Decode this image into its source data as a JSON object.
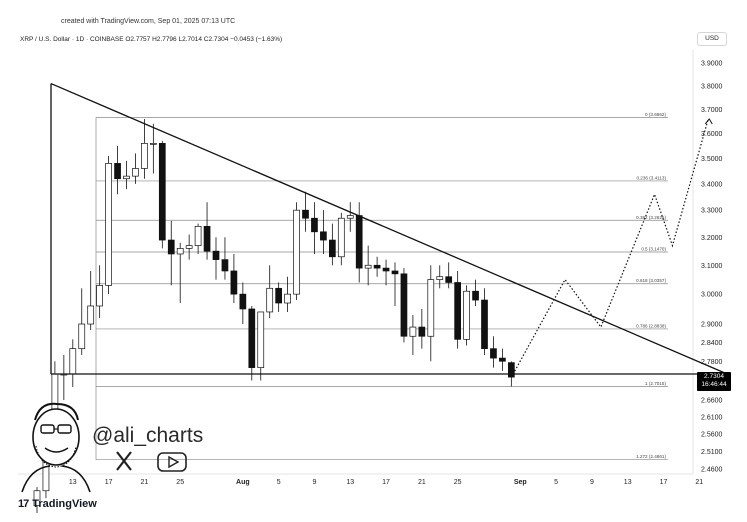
{
  "header": {
    "created_text": "created with TradingView.com, Sep 01, 2025 07:13 UTC",
    "symbol_line": "XRP / U.S. Dollar · 1D · COINBASE  O2.7757  H2.7796  L2.7014  C2.7304  −0.0453 (−1.63%)",
    "currency": "USD"
  },
  "price_tag": {
    "price": "2.7304",
    "countdown": "16:46:44"
  },
  "watermark": {
    "handle": "@ali_charts",
    "icons": [
      "x-icon",
      "youtube-icon"
    ]
  },
  "footer": {
    "logo_mark": "17",
    "logo_text": "TradingView"
  },
  "chart_data": {
    "type": "candlestick",
    "y_axis": {
      "scale": "log",
      "ticks": [
        "3.9000",
        "3.8000",
        "3.7000",
        "3.6000",
        "3.5000",
        "3.4000",
        "3.3000",
        "3.2000",
        "3.1000",
        "3.0000",
        "2.9000",
        "2.8400",
        "2.7800",
        "2.6600",
        "2.6100",
        "2.5600",
        "2.5100",
        "2.4600"
      ]
    },
    "x_axis": {
      "ticks": [
        "13",
        "17",
        "21",
        "25",
        "Aug",
        "5",
        "9",
        "13",
        "17",
        "21",
        "25",
        "Sep",
        "5",
        "9",
        "13",
        "17",
        "21"
      ]
    },
    "fibonacci": [
      {
        "label": "0 (3.6662)",
        "value": 3.6662
      },
      {
        "label": "0.236 (3.4113)",
        "value": 3.4113
      },
      {
        "label": "0.382 (3.2625)",
        "value": 3.2625
      },
      {
        "label": "0.5 (3.1470)",
        "value": 3.147
      },
      {
        "label": "0.618 (3.0357)",
        "value": 3.0357
      },
      {
        "label": "0.786 (2.8838)",
        "value": 2.8838
      },
      {
        "label": "1 (2.7015)",
        "value": 2.7015
      },
      {
        "label": "1.272 (2.4861)",
        "value": 2.4861
      }
    ],
    "candles": [
      {
        "date": "Jul 09",
        "open": 2.36,
        "high": 2.41,
        "low": 2.34,
        "close": 2.4
      },
      {
        "date": "Jul 10",
        "open": 2.4,
        "high": 2.55,
        "low": 2.38,
        "close": 2.53
      },
      {
        "date": "Jul 11",
        "open": 2.53,
        "high": 2.78,
        "low": 2.5,
        "close": 2.74
      },
      {
        "date": "Jul 12",
        "open": 2.74,
        "high": 2.8,
        "low": 2.66,
        "close": 2.74
      },
      {
        "date": "Jul 13",
        "open": 2.74,
        "high": 2.85,
        "low": 2.7,
        "close": 2.82
      },
      {
        "date": "Jul 14",
        "open": 2.82,
        "high": 3.02,
        "low": 2.8,
        "close": 2.9
      },
      {
        "date": "Jul 15",
        "open": 2.9,
        "high": 3.08,
        "low": 2.88,
        "close": 2.96
      },
      {
        "date": "Jul 16",
        "open": 2.96,
        "high": 3.1,
        "low": 2.92,
        "close": 3.03
      },
      {
        "date": "Jul 17",
        "open": 3.03,
        "high": 3.51,
        "low": 3.0,
        "close": 3.48
      },
      {
        "date": "Jul 18",
        "open": 3.48,
        "high": 3.55,
        "low": 3.36,
        "close": 3.42
      },
      {
        "date": "Jul 19",
        "open": 3.42,
        "high": 3.49,
        "low": 3.38,
        "close": 3.43
      },
      {
        "date": "Jul 20",
        "open": 3.43,
        "high": 3.52,
        "low": 3.4,
        "close": 3.46
      },
      {
        "date": "Jul 21",
        "open": 3.46,
        "high": 3.66,
        "low": 3.42,
        "close": 3.56
      },
      {
        "date": "Jul 22",
        "open": 3.56,
        "high": 3.64,
        "low": 3.44,
        "close": 3.56
      },
      {
        "date": "Jul 23",
        "open": 3.56,
        "high": 3.57,
        "low": 3.16,
        "close": 3.19
      },
      {
        "date": "Jul 24",
        "open": 3.19,
        "high": 3.26,
        "low": 3.03,
        "close": 3.14
      },
      {
        "date": "Jul 25",
        "open": 3.14,
        "high": 3.18,
        "low": 2.97,
        "close": 3.16
      },
      {
        "date": "Jul 26",
        "open": 3.16,
        "high": 3.21,
        "low": 3.12,
        "close": 3.17
      },
      {
        "date": "Jul 27",
        "open": 3.17,
        "high": 3.25,
        "low": 3.14,
        "close": 3.24
      },
      {
        "date": "Jul 28",
        "open": 3.24,
        "high": 3.33,
        "low": 3.12,
        "close": 3.15
      },
      {
        "date": "Jul 29",
        "open": 3.15,
        "high": 3.2,
        "low": 3.05,
        "close": 3.12
      },
      {
        "date": "Jul 30",
        "open": 3.12,
        "high": 3.2,
        "low": 3.05,
        "close": 3.08
      },
      {
        "date": "Jul 31",
        "open": 3.08,
        "high": 3.14,
        "low": 2.97,
        "close": 3.0
      },
      {
        "date": "Aug 01",
        "open": 3.0,
        "high": 3.04,
        "low": 2.9,
        "close": 2.95
      },
      {
        "date": "Aug 02",
        "open": 2.95,
        "high": 2.96,
        "low": 2.72,
        "close": 2.76
      },
      {
        "date": "Aug 03",
        "open": 2.76,
        "high": 2.94,
        "low": 2.72,
        "close": 2.94
      },
      {
        "date": "Aug 04",
        "open": 2.94,
        "high": 3.1,
        "low": 2.92,
        "close": 3.02
      },
      {
        "date": "Aug 05",
        "open": 3.02,
        "high": 3.04,
        "low": 2.94,
        "close": 2.97
      },
      {
        "date": "Aug 06",
        "open": 2.97,
        "high": 3.06,
        "low": 2.94,
        "close": 3.0
      },
      {
        "date": "Aug 07",
        "open": 3.0,
        "high": 3.33,
        "low": 2.98,
        "close": 3.3
      },
      {
        "date": "Aug 08",
        "open": 3.3,
        "high": 3.37,
        "low": 3.22,
        "close": 3.27
      },
      {
        "date": "Aug 09",
        "open": 3.27,
        "high": 3.33,
        "low": 3.14,
        "close": 3.22
      },
      {
        "date": "Aug 10",
        "open": 3.22,
        "high": 3.3,
        "low": 3.14,
        "close": 3.19
      },
      {
        "date": "Aug 11",
        "open": 3.19,
        "high": 3.25,
        "low": 3.1,
        "close": 3.13
      },
      {
        "date": "Aug 12",
        "open": 3.13,
        "high": 3.29,
        "low": 3.1,
        "close": 3.27
      },
      {
        "date": "Aug 13",
        "open": 3.27,
        "high": 3.33,
        "low": 3.22,
        "close": 3.28
      },
      {
        "date": "Aug 14",
        "open": 3.28,
        "high": 3.33,
        "low": 3.04,
        "close": 3.09
      },
      {
        "date": "Aug 15",
        "open": 3.09,
        "high": 3.17,
        "low": 3.03,
        "close": 3.1
      },
      {
        "date": "Aug 16",
        "open": 3.1,
        "high": 3.13,
        "low": 3.06,
        "close": 3.09
      },
      {
        "date": "Aug 17",
        "open": 3.09,
        "high": 3.12,
        "low": 3.03,
        "close": 3.08
      },
      {
        "date": "Aug 18",
        "open": 3.08,
        "high": 3.11,
        "low": 2.96,
        "close": 3.07
      },
      {
        "date": "Aug 19",
        "open": 3.07,
        "high": 3.09,
        "low": 2.84,
        "close": 2.86
      },
      {
        "date": "Aug 20",
        "open": 2.86,
        "high": 2.93,
        "low": 2.8,
        "close": 2.89
      },
      {
        "date": "Aug 21",
        "open": 2.89,
        "high": 2.95,
        "low": 2.82,
        "close": 2.86
      },
      {
        "date": "Aug 22",
        "open": 2.86,
        "high": 3.1,
        "low": 2.78,
        "close": 3.05
      },
      {
        "date": "Aug 23",
        "open": 3.05,
        "high": 3.1,
        "low": 3.02,
        "close": 3.06
      },
      {
        "date": "Aug 24",
        "open": 3.06,
        "high": 3.11,
        "low": 3.02,
        "close": 3.04
      },
      {
        "date": "Aug 25",
        "open": 3.04,
        "high": 3.08,
        "low": 2.82,
        "close": 2.85
      },
      {
        "date": "Aug 26",
        "open": 2.85,
        "high": 3.03,
        "low": 2.83,
        "close": 3.01
      },
      {
        "date": "Aug 27",
        "open": 3.01,
        "high": 3.05,
        "low": 2.96,
        "close": 2.98
      },
      {
        "date": "Aug 28",
        "open": 2.98,
        "high": 3.02,
        "low": 2.8,
        "close": 2.82
      },
      {
        "date": "Aug 29",
        "open": 2.82,
        "high": 2.86,
        "low": 2.76,
        "close": 2.79
      },
      {
        "date": "Aug 30",
        "open": 2.79,
        "high": 2.82,
        "low": 2.75,
        "close": 2.78
      },
      {
        "date": "Aug 31",
        "open": 2.7757,
        "high": 2.7796,
        "low": 2.7014,
        "close": 2.7304
      }
    ],
    "triangle": {
      "upper_line": [
        {
          "date": "Jul 09",
          "price": 3.81
        },
        {
          "date": "Sep 23",
          "price": 2.74
        }
      ],
      "lower_line": [
        {
          "date": "Jul 09",
          "price": 2.74
        },
        {
          "date": "Sep 23",
          "price": 2.74
        }
      ]
    },
    "projection": [
      {
        "date": "Aug 31",
        "price": 2.73
      },
      {
        "date": "Sep 06",
        "price": 3.05
      },
      {
        "date": "Sep 10",
        "price": 2.89
      },
      {
        "date": "Sep 16",
        "price": 3.36
      },
      {
        "date": "Sep 18",
        "price": 3.17
      },
      {
        "date": "Sep 22",
        "price": 3.66
      }
    ]
  }
}
